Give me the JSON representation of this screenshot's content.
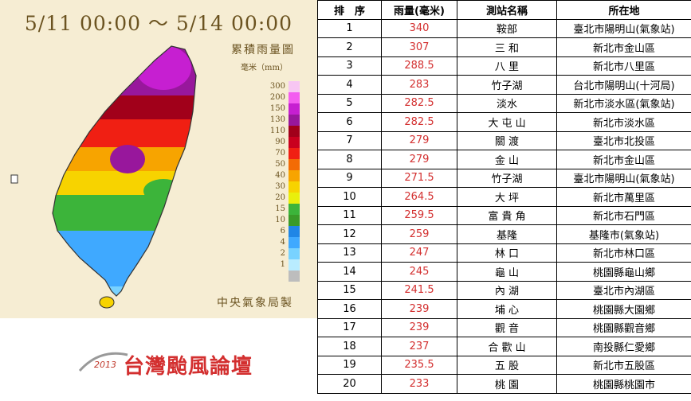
{
  "map": {
    "date_range": "5/11 00:00 ～ 5/14 00:00",
    "title": "累積雨量圖",
    "unit": "毫米（mm）",
    "credit": "中央氣象局製",
    "legend": [
      {
        "label": "300",
        "color": "#f7c6f3"
      },
      {
        "label": "200",
        "color": "#f35cf0"
      },
      {
        "label": "150",
        "color": "#c61fd1"
      },
      {
        "label": "130",
        "color": "#98179c"
      },
      {
        "label": "110",
        "color": "#a1001a"
      },
      {
        "label": "90",
        "color": "#c9001e"
      },
      {
        "label": "70",
        "color": "#f01f13"
      },
      {
        "label": "50",
        "color": "#f36b05"
      },
      {
        "label": "40",
        "color": "#f7a400"
      },
      {
        "label": "30",
        "color": "#f7d300"
      },
      {
        "label": "20",
        "color": "#e9ef0c"
      },
      {
        "label": "15",
        "color": "#3cb43a"
      },
      {
        "label": "10",
        "color": "#3a9a28"
      },
      {
        "label": "6",
        "color": "#1f86e6"
      },
      {
        "label": "4",
        "color": "#3fa9ff"
      },
      {
        "label": "2",
        "color": "#78d2ff"
      },
      {
        "label": "1",
        "color": "#b9ecff"
      },
      {
        "label": "",
        "color": "#bdbdbd"
      }
    ]
  },
  "logo": {
    "year": "2013",
    "text": "台灣颱風論壇"
  },
  "table": {
    "headers": [
      "排　序",
      "雨量(毫米)",
      "測站名稱",
      "所在地"
    ],
    "rows": [
      {
        "rank": "1",
        "value": "340",
        "station": "鞍部",
        "location": "臺北市陽明山(氣象站)"
      },
      {
        "rank": "2",
        "value": "307",
        "station": "三 和",
        "location": "新北市金山區"
      },
      {
        "rank": "3",
        "value": "288.5",
        "station": "八 里",
        "location": "新北市八里區"
      },
      {
        "rank": "4",
        "value": "283",
        "station": "竹子湖",
        "location": "台北市陽明山(十河局)"
      },
      {
        "rank": "5",
        "value": "282.5",
        "station": "淡水",
        "location": "新北市淡水區(氣象站)"
      },
      {
        "rank": "6",
        "value": "282.5",
        "station": "大 屯 山",
        "location": "新北市淡水區"
      },
      {
        "rank": "7",
        "value": "279",
        "station": "關 渡",
        "location": "臺北市北投區"
      },
      {
        "rank": "8",
        "value": "279",
        "station": "金 山",
        "location": "新北市金山區"
      },
      {
        "rank": "9",
        "value": "271.5",
        "station": "竹子湖",
        "location": "臺北市陽明山(氣象站)"
      },
      {
        "rank": "10",
        "value": "264.5",
        "station": "大 坪",
        "location": "新北市萬里區"
      },
      {
        "rank": "11",
        "value": "259.5",
        "station": "富 貴 角",
        "location": "新北市石門區"
      },
      {
        "rank": "12",
        "value": "259",
        "station": "基隆",
        "location": "基隆市(氣象站)"
      },
      {
        "rank": "13",
        "value": "247",
        "station": "林 口",
        "location": "新北市林口區"
      },
      {
        "rank": "14",
        "value": "245",
        "station": "龜 山",
        "location": "桃園縣龜山鄉"
      },
      {
        "rank": "15",
        "value": "241.5",
        "station": "內 湖",
        "location": "臺北市內湖區"
      },
      {
        "rank": "16",
        "value": "239",
        "station": "埔 心",
        "location": "桃園縣大園鄉"
      },
      {
        "rank": "17",
        "value": "239",
        "station": "觀 音",
        "location": "桃園縣觀音鄉"
      },
      {
        "rank": "18",
        "value": "237",
        "station": "合 歡 山",
        "location": "南投縣仁愛鄉"
      },
      {
        "rank": "19",
        "value": "235.5",
        "station": "五 股",
        "location": "新北市五股區"
      },
      {
        "rank": "20",
        "value": "233",
        "station": "桃 園",
        "location": "桃園縣桃園市"
      }
    ]
  },
  "chart_data": {
    "type": "table",
    "title": "",
    "columns": [
      "排　序",
      "雨量(毫米)",
      "測站名稱",
      "所在地"
    ],
    "categories": [
      "鞍部",
      "三 和",
      "八 里",
      "竹子湖",
      "淡水",
      "大 屯 山",
      "關 渡",
      "金 山",
      "竹子湖",
      "大 坪",
      "富 貴 角",
      "基隆",
      "林 口",
      "龜 山",
      "內 湖",
      "埔 心",
      "觀 音",
      "合 歡 山",
      "五 股",
      "桃 園"
    ],
    "values": [
      340,
      307,
      288.5,
      283,
      282.5,
      282.5,
      279,
      279,
      271.5,
      264.5,
      259.5,
      259,
      247,
      245,
      241.5,
      239,
      239,
      237,
      235.5,
      233
    ]
  }
}
